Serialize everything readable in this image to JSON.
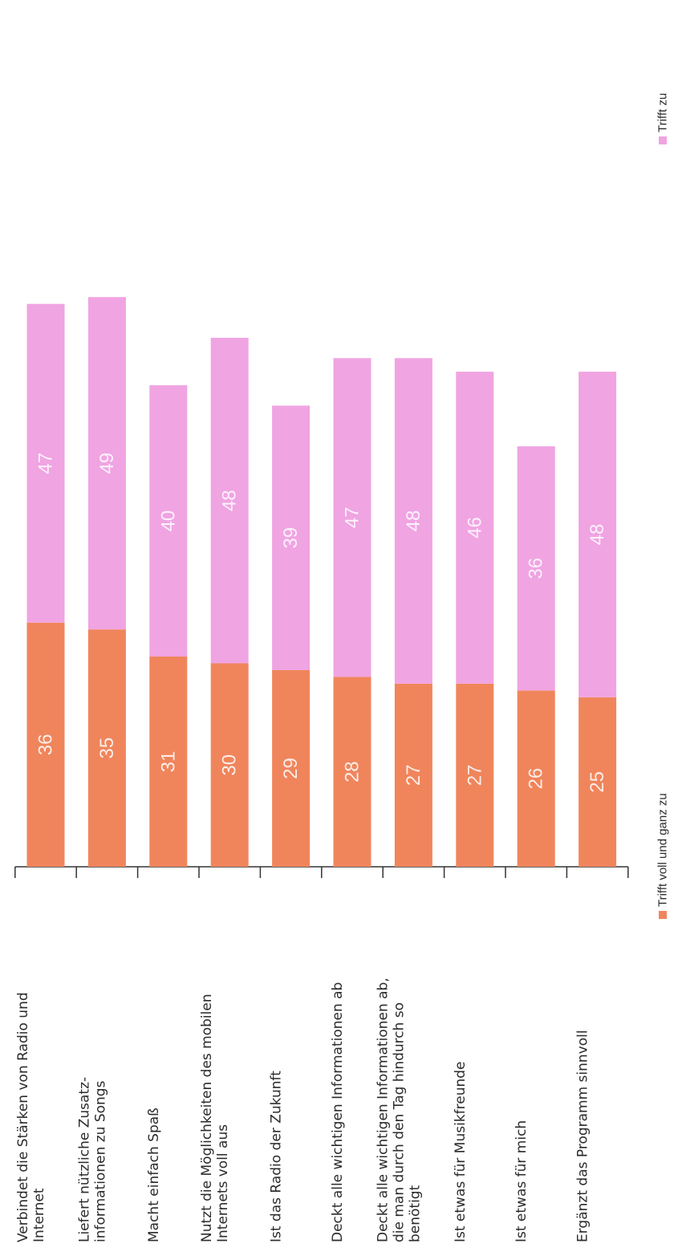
{
  "chart_data": {
    "type": "bar",
    "stacked": true,
    "orientation": "horizontal",
    "rotated_page": true,
    "categories": [
      [
        "Verbindet die Stärken von Radio und",
        "Internet"
      ],
      [
        "Liefert nützliche Zusatz-",
        "informationen zu Songs"
      ],
      [
        "Macht einfach Spaß"
      ],
      [
        "Nutzt die Möglichkeiten des mobilen",
        "Internets voll aus"
      ],
      [
        "Ist das Radio der Zukunft"
      ],
      [
        "Deckt alle wichtigen Informationen ab"
      ],
      [
        "Deckt alle wichtigen Informationen ab,",
        "die man durch den Tag hindurch so",
        "benötigt"
      ],
      [
        "Ist etwas für Musikfreunde"
      ],
      [
        "Ist etwas für mich"
      ],
      [
        "Ergänzt das Programm sinnvoll"
      ]
    ],
    "series": [
      {
        "name": "Trifft voll und ganz zu",
        "color": "#f0855c",
        "values": [
          36,
          35,
          31,
          30,
          29,
          28,
          27,
          27,
          26,
          25
        ]
      },
      {
        "name": "Trifft zu",
        "color": "#f0a4e2",
        "values": [
          47,
          49,
          40,
          48,
          39,
          47,
          48,
          46,
          36,
          48
        ]
      }
    ],
    "xlim": [
      0,
      84
    ],
    "grid": false,
    "legend_position": "bottom"
  }
}
